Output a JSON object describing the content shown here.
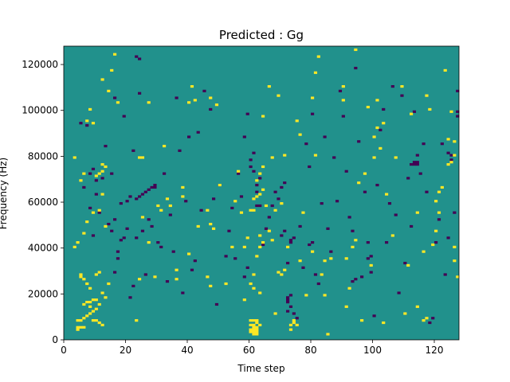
{
  "chart_data": {
    "type": "heatmap",
    "title": "Predicted : Gg",
    "xlabel": "Time step",
    "ylabel": "Frequency (Hz)",
    "xlim": [
      0,
      128
    ],
    "ylim": [
      0,
      128000
    ],
    "x_ticks": [
      0,
      20,
      40,
      60,
      80,
      100,
      120
    ],
    "y_ticks": [
      0,
      20000,
      40000,
      60000,
      80000,
      100000,
      120000
    ],
    "x_tick_labels": [
      "0",
      "20",
      "40",
      "60",
      "80",
      "100",
      "120"
    ],
    "y_tick_labels": [
      "0",
      "20000",
      "40000",
      "60000",
      "80000",
      "100000",
      "120000"
    ],
    "levels": {
      "background": "#21918c",
      "low": "#440154",
      "high": "#fde725"
    },
    "grid": false,
    "cells_high": [
      [
        4,
        4
      ],
      [
        4,
        5
      ],
      [
        5,
        5
      ],
      [
        6,
        5
      ],
      [
        4,
        8
      ],
      [
        5,
        8
      ],
      [
        6,
        9
      ],
      [
        7,
        10
      ],
      [
        8,
        11
      ],
      [
        9,
        12
      ],
      [
        10,
        13
      ],
      [
        8,
        14
      ],
      [
        6,
        15
      ],
      [
        7,
        16
      ],
      [
        8,
        16
      ],
      [
        9,
        17
      ],
      [
        10,
        17
      ],
      [
        11,
        15
      ],
      [
        9,
        8
      ],
      [
        10,
        8
      ],
      [
        11,
        7
      ],
      [
        12,
        6
      ],
      [
        7,
        24
      ],
      [
        8,
        22
      ],
      [
        6,
        26
      ],
      [
        5,
        27
      ],
      [
        5,
        28
      ],
      [
        10,
        28
      ],
      [
        11,
        29
      ],
      [
        12,
        20
      ],
      [
        13,
        18
      ],
      [
        14,
        24
      ],
      [
        3,
        40
      ],
      [
        4,
        42
      ],
      [
        6,
        46
      ],
      [
        7,
        51
      ],
      [
        9,
        55
      ],
      [
        11,
        56
      ],
      [
        12,
        63
      ],
      [
        13,
        49
      ],
      [
        10,
        71
      ],
      [
        11,
        72
      ],
      [
        12,
        73
      ],
      [
        13,
        75
      ],
      [
        12,
        76
      ],
      [
        3,
        79
      ],
      [
        5,
        69
      ],
      [
        6,
        72
      ],
      [
        7,
        95
      ],
      [
        8,
        100
      ],
      [
        9,
        94
      ],
      [
        12,
        113
      ],
      [
        16,
        124
      ],
      [
        15,
        117
      ],
      [
        14,
        108
      ],
      [
        17,
        103
      ],
      [
        23,
        8
      ],
      [
        24,
        26
      ],
      [
        25,
        53
      ],
      [
        27,
        42
      ],
      [
        30,
        58
      ],
      [
        32,
        84
      ],
      [
        34,
        58
      ],
      [
        36,
        30
      ],
      [
        38,
        66
      ],
      [
        40,
        37
      ],
      [
        41,
        110
      ],
      [
        42,
        104
      ],
      [
        43,
        49
      ],
      [
        24,
        79
      ],
      [
        25,
        79
      ],
      [
        27,
        103
      ],
      [
        29,
        27
      ],
      [
        31,
        56
      ],
      [
        33,
        61
      ],
      [
        36,
        26
      ],
      [
        38,
        62
      ],
      [
        40,
        103
      ],
      [
        46,
        27
      ],
      [
        47,
        50
      ],
      [
        47,
        105
      ],
      [
        48,
        48
      ],
      [
        49,
        102
      ],
      [
        50,
        67
      ],
      [
        52,
        24
      ],
      [
        54,
        40
      ],
      [
        55,
        60
      ],
      [
        56,
        73
      ],
      [
        57,
        55
      ],
      [
        58,
        17
      ],
      [
        58,
        40
      ],
      [
        59,
        44
      ],
      [
        60,
        3
      ],
      [
        60,
        4
      ],
      [
        61,
        2
      ],
      [
        61,
        3
      ],
      [
        61,
        4
      ],
      [
        61,
        5
      ],
      [
        62,
        2
      ],
      [
        62,
        3
      ],
      [
        62,
        4
      ],
      [
        62,
        5
      ],
      [
        60,
        8
      ],
      [
        61,
        8
      ],
      [
        62,
        8
      ],
      [
        60,
        6
      ],
      [
        61,
        6
      ],
      [
        62,
        7
      ],
      [
        63,
        6
      ],
      [
        63,
        20
      ],
      [
        61,
        22
      ],
      [
        60,
        24
      ],
      [
        61,
        28
      ],
      [
        62,
        36
      ],
      [
        63,
        40
      ],
      [
        64,
        42
      ],
      [
        63,
        45
      ],
      [
        64,
        75
      ],
      [
        65,
        58
      ],
      [
        66,
        47
      ],
      [
        67,
        43
      ],
      [
        60,
        56
      ],
      [
        61,
        56
      ],
      [
        61,
        61
      ],
      [
        62,
        62
      ],
      [
        63,
        63
      ],
      [
        64,
        65
      ],
      [
        62,
        69
      ],
      [
        63,
        72
      ],
      [
        64,
        97
      ],
      [
        66,
        110
      ],
      [
        67,
        79
      ],
      [
        68,
        11
      ],
      [
        69,
        29
      ],
      [
        69,
        106
      ],
      [
        70,
        28
      ],
      [
        71,
        30
      ],
      [
        71,
        80
      ],
      [
        72,
        40
      ],
      [
        73,
        4
      ],
      [
        73,
        6
      ],
      [
        74,
        7
      ],
      [
        74,
        8
      ],
      [
        75,
        6
      ],
      [
        76,
        34
      ],
      [
        77,
        55
      ],
      [
        78,
        19
      ],
      [
        80,
        38
      ],
      [
        81,
        80
      ],
      [
        83,
        28
      ],
      [
        84,
        34
      ],
      [
        84,
        19
      ],
      [
        85,
        2
      ],
      [
        86,
        35
      ],
      [
        91,
        14
      ],
      [
        91,
        35
      ],
      [
        92,
        22
      ],
      [
        93,
        40
      ],
      [
        94,
        43
      ],
      [
        95,
        68
      ],
      [
        96,
        8
      ],
      [
        97,
        72
      ],
      [
        98,
        101
      ],
      [
        99,
        32
      ],
      [
        100,
        79
      ],
      [
        101,
        104
      ],
      [
        102,
        83
      ],
      [
        103,
        94
      ],
      [
        104,
        63
      ],
      [
        106,
        45
      ],
      [
        107,
        79
      ],
      [
        109,
        110
      ],
      [
        110,
        11
      ],
      [
        112,
        98
      ],
      [
        114,
        55
      ],
      [
        116,
        38
      ],
      [
        117,
        106
      ],
      [
        118,
        100
      ],
      [
        119,
        41
      ],
      [
        120,
        47
      ],
      [
        121,
        55
      ],
      [
        122,
        66
      ],
      [
        123,
        117
      ],
      [
        124,
        76
      ],
      [
        125,
        77
      ],
      [
        125,
        99
      ],
      [
        126,
        34
      ],
      [
        126,
        40
      ],
      [
        127,
        27
      ],
      [
        46,
        56
      ],
      [
        47,
        23
      ],
      [
        68,
        56
      ],
      [
        70,
        59
      ],
      [
        75,
        95
      ],
      [
        76,
        89
      ],
      [
        80,
        105
      ],
      [
        81,
        116
      ],
      [
        82,
        123
      ],
      [
        90,
        104
      ],
      [
        90,
        110
      ],
      [
        94,
        126
      ],
      [
        100,
        88
      ],
      [
        101,
        92
      ],
      [
        103,
        7
      ],
      [
        111,
        32
      ],
      [
        114,
        14
      ],
      [
        116,
        8
      ],
      [
        117,
        9
      ],
      [
        120,
        60
      ],
      [
        121,
        64
      ],
      [
        124,
        87
      ],
      [
        126,
        86
      ],
      [
        126,
        80
      ]
    ],
    "cells_low": [
      [
        5,
        94
      ],
      [
        6,
        66
      ],
      [
        7,
        93
      ],
      [
        8,
        57
      ],
      [
        9,
        74
      ],
      [
        10,
        63
      ],
      [
        10,
        69
      ],
      [
        11,
        55
      ],
      [
        12,
        70
      ],
      [
        13,
        84
      ],
      [
        15,
        72
      ],
      [
        16,
        105
      ],
      [
        16,
        29
      ],
      [
        17,
        35
      ],
      [
        17,
        38
      ],
      [
        18,
        43
      ],
      [
        19,
        44
      ],
      [
        19,
        97
      ],
      [
        20,
        48
      ],
      [
        21,
        18
      ],
      [
        22,
        23
      ],
      [
        23,
        44
      ],
      [
        24,
        107
      ],
      [
        25,
        47
      ],
      [
        26,
        28
      ],
      [
        27,
        52
      ],
      [
        28,
        49
      ],
      [
        29,
        66
      ],
      [
        30,
        42
      ],
      [
        31,
        40
      ],
      [
        32,
        72
      ],
      [
        33,
        25
      ],
      [
        34,
        54
      ],
      [
        35,
        38
      ],
      [
        36,
        105
      ],
      [
        37,
        82
      ],
      [
        38,
        20
      ],
      [
        39,
        60
      ],
      [
        40,
        88
      ],
      [
        41,
        30
      ],
      [
        42,
        34
      ],
      [
        43,
        90
      ],
      [
        44,
        56
      ],
      [
        45,
        108
      ],
      [
        47,
        100
      ],
      [
        48,
        61
      ],
      [
        49,
        15
      ],
      [
        50,
        67
      ],
      [
        52,
        36
      ],
      [
        53,
        47
      ],
      [
        54,
        57
      ],
      [
        55,
        35
      ],
      [
        56,
        72
      ],
      [
        57,
        62
      ],
      [
        58,
        88
      ],
      [
        59,
        98
      ],
      [
        60,
        78
      ],
      [
        61,
        81
      ],
      [
        62,
        64
      ],
      [
        63,
        70
      ],
      [
        64,
        41
      ],
      [
        65,
        48
      ],
      [
        66,
        53
      ],
      [
        67,
        58
      ],
      [
        68,
        64
      ],
      [
        69,
        61
      ],
      [
        70,
        66
      ],
      [
        71,
        68
      ],
      [
        72,
        12
      ],
      [
        73,
        14
      ],
      [
        74,
        11
      ],
      [
        75,
        9
      ],
      [
        76,
        49
      ],
      [
        77,
        31
      ],
      [
        78,
        85
      ],
      [
        79,
        75
      ],
      [
        80,
        98
      ],
      [
        81,
        28
      ],
      [
        82,
        24
      ],
      [
        83,
        59
      ],
      [
        84,
        88
      ],
      [
        85,
        48
      ],
      [
        86,
        38
      ],
      [
        87,
        79
      ],
      [
        88,
        60
      ],
      [
        89,
        108
      ],
      [
        90,
        97
      ],
      [
        91,
        73
      ],
      [
        92,
        53
      ],
      [
        93,
        47
      ],
      [
        94,
        118
      ],
      [
        95,
        86
      ],
      [
        96,
        27
      ],
      [
        97,
        64
      ],
      [
        98,
        42
      ],
      [
        99,
        29
      ],
      [
        100,
        10
      ],
      [
        101,
        67
      ],
      [
        102,
        91
      ],
      [
        103,
        100
      ],
      [
        104,
        42
      ],
      [
        105,
        59
      ],
      [
        106,
        110
      ],
      [
        107,
        54
      ],
      [
        108,
        20
      ],
      [
        109,
        106
      ],
      [
        110,
        33
      ],
      [
        111,
        70
      ],
      [
        112,
        49
      ],
      [
        113,
        99
      ],
      [
        114,
        80
      ],
      [
        115,
        72
      ],
      [
        116,
        85
      ],
      [
        117,
        64
      ],
      [
        118,
        7
      ],
      [
        119,
        9
      ],
      [
        120,
        42
      ],
      [
        121,
        52
      ],
      [
        122,
        85
      ],
      [
        123,
        28
      ],
      [
        124,
        44
      ],
      [
        125,
        78
      ],
      [
        126,
        55
      ],
      [
        127,
        108
      ],
      [
        60,
        75
      ],
      [
        61,
        73
      ],
      [
        62,
        67
      ],
      [
        62,
        58
      ],
      [
        63,
        58
      ],
      [
        70,
        45
      ],
      [
        71,
        47
      ],
      [
        72,
        16
      ],
      [
        72,
        17
      ],
      [
        72,
        18
      ],
      [
        73,
        19
      ],
      [
        72,
        33
      ],
      [
        73,
        42
      ],
      [
        73,
        43
      ],
      [
        74,
        44
      ],
      [
        112,
        76
      ],
      [
        113,
        76
      ],
      [
        114,
        76
      ],
      [
        113,
        77
      ],
      [
        114,
        77
      ],
      [
        125,
        80
      ],
      [
        127,
        97
      ],
      [
        127,
        99
      ],
      [
        124,
        81
      ],
      [
        8,
        72
      ],
      [
        9,
        45
      ],
      [
        14,
        50
      ],
      [
        15,
        47
      ],
      [
        16,
        52
      ],
      [
        18,
        59
      ],
      [
        20,
        60
      ],
      [
        21,
        62
      ],
      [
        22,
        82
      ],
      [
        23,
        61
      ],
      [
        24,
        62
      ],
      [
        25,
        63
      ],
      [
        26,
        64
      ],
      [
        27,
        65
      ],
      [
        28,
        66
      ],
      [
        29,
        67
      ],
      [
        23,
        123
      ],
      [
        24,
        122
      ],
      [
        58,
        27
      ],
      [
        59,
        31
      ],
      [
        79,
        41
      ],
      [
        80,
        42
      ],
      [
        93,
        25
      ],
      [
        94,
        26
      ],
      [
        98,
        35
      ],
      [
        99,
        36
      ]
    ]
  }
}
